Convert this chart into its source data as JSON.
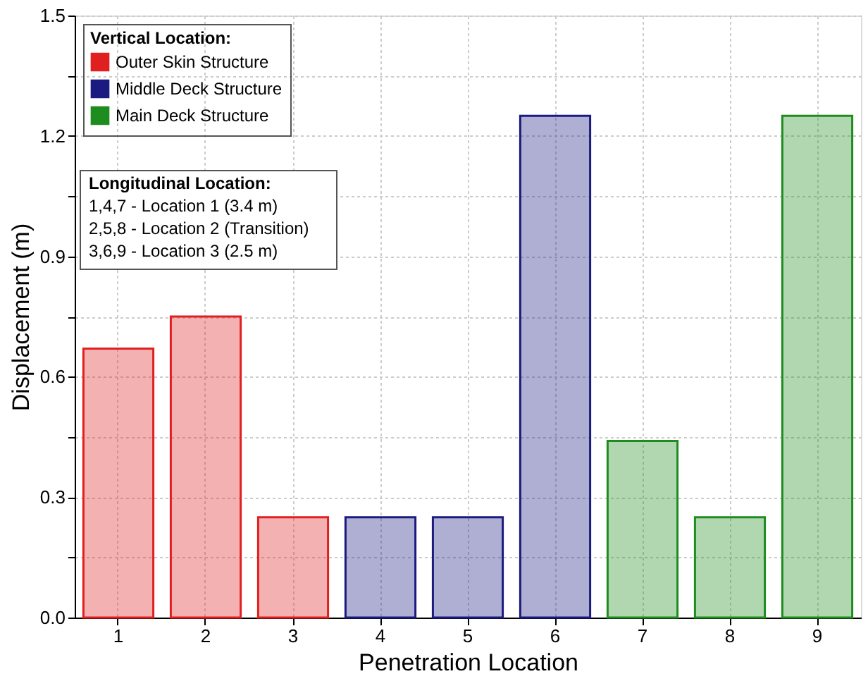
{
  "chart_data": {
    "type": "bar",
    "xlabel": "Penetration Location",
    "ylabel": "Displacement (m)",
    "categories": [
      "1",
      "2",
      "3",
      "4",
      "5",
      "6",
      "7",
      "8",
      "9"
    ],
    "series": [
      {
        "name": "Outer Skin Structure",
        "color": "#e02020",
        "values": [
          0.67,
          0.75,
          0.25,
          null,
          null,
          null,
          null,
          null,
          null
        ]
      },
      {
        "name": "Middle Deck Structure",
        "color": "#1a1a80",
        "values": [
          null,
          null,
          null,
          0.25,
          0.25,
          1.25,
          null,
          null,
          null
        ]
      },
      {
        "name": "Main Deck Structure",
        "color": "#1e8c1e",
        "values": [
          null,
          null,
          null,
          null,
          null,
          null,
          0.44,
          0.25,
          1.25
        ]
      }
    ],
    "legend_title": "Vertical Location:",
    "legend": "top left",
    "annotations": [
      "Longitudinal Location:",
      "1,4,7 - Location 1 (3.4 m)",
      "2,5,8 - Location 2 (Transition)",
      "3,6,9 - Location 3 (2.5 m)"
    ],
    "ylim": [
      0,
      1.5
    ],
    "yticks": [
      {
        "value": 0,
        "label": "0.0"
      },
      {
        "value": 0.15,
        "label": null
      },
      0.3,
      {
        "value": 0.45,
        "label": null
      },
      0.6,
      {
        "value": 0.75,
        "label": null
      },
      0.9,
      {
        "value": 1.05,
        "label": null
      },
      1.2,
      {
        "value": 1.35,
        "label": null
      },
      1.5
    ],
    "grid": true
  }
}
